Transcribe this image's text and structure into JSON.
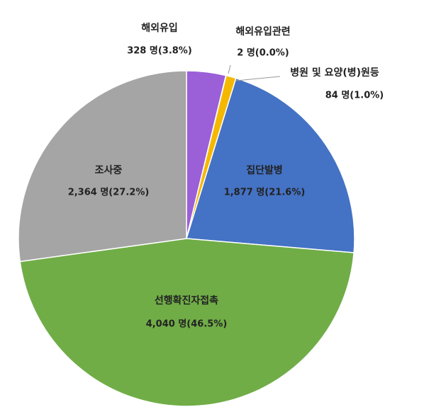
{
  "chart_data": {
    "type": "pie",
    "categories": [
      "해외유입",
      "해외유입관련",
      "병원 및 요양(병)원등",
      "집단발병",
      "선행확진자접촉",
      "조사중"
    ],
    "values": [
      328,
      2,
      84,
      1877,
      4040,
      2364
    ],
    "value_labels": [
      "328 명(3.8%)",
      "2 명(0.0%)",
      "84 명(1.0%)",
      "1,877 명(21.6%)",
      "4,040 명(46.5%)",
      "2,364 명(27.2%)"
    ],
    "colors": [
      "#9b5fd8",
      "#ffd966",
      "#f5b800",
      "#4472c4",
      "#70ad47",
      "#a5a5a5"
    ]
  }
}
